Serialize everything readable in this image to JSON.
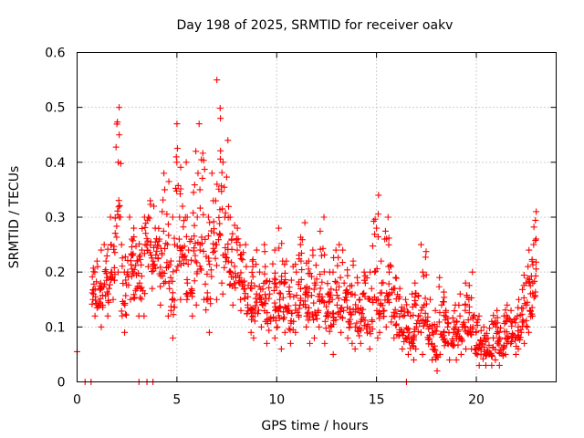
{
  "chart_data": {
    "type": "scatter",
    "title": "Day 198 of 2025, SRMTID for receiver oakv",
    "xlabel": "GPS time / hours",
    "ylabel": "SRMTID / TECUs",
    "xlim": [
      0,
      24
    ],
    "ylim": [
      0,
      0.6
    ],
    "x_ticks": [
      0,
      5,
      10,
      15,
      20
    ],
    "x_tick_labels": [
      "0",
      "5",
      "10",
      "15",
      "20"
    ],
    "y_ticks": [
      0,
      0.1,
      0.2,
      0.3,
      0.4,
      0.5,
      0.6
    ],
    "y_tick_labels": [
      "0",
      "0.1",
      "0.2",
      "0.3",
      "0.4",
      "0.5",
      "0.6"
    ],
    "grid": true,
    "marker": "+",
    "series_color": "#ff0000",
    "series": [
      {
        "name": "SRMTID",
        "note": "thousands of points; binned summary: for each time bin, representative values spanning the visible vertical spread",
        "bins": [
          {
            "x": 0.0,
            "values": [
              0.055
            ]
          },
          {
            "x": 0.7,
            "values": [
              0.12,
              0.15,
              0.2,
              0.22
            ]
          },
          {
            "x": 1.0,
            "values": [
              0.1,
              0.14,
              0.18,
              0.21,
              0.24
            ]
          },
          {
            "x": 1.3,
            "values": [
              0.12,
              0.17,
              0.22,
              0.25
            ]
          },
          {
            "x": 1.6,
            "values": [
              0.15,
              0.2,
              0.25,
              0.3
            ]
          },
          {
            "x": 1.9,
            "values": [
              0.2,
              0.3,
              0.4,
              0.45,
              0.5
            ]
          },
          {
            "x": 2.2,
            "values": [
              0.09,
              0.14,
              0.2,
              0.25
            ]
          },
          {
            "x": 2.5,
            "values": [
              0.15,
              0.2,
              0.26,
              0.3
            ]
          },
          {
            "x": 2.8,
            "values": [
              0.12,
              0.17,
              0.22,
              0.28
            ]
          },
          {
            "x": 3.1,
            "values": [
              0.12,
              0.18,
              0.24,
              0.3
            ]
          },
          {
            "x": 3.4,
            "values": [
              0.21,
              0.25,
              0.3,
              0.33
            ]
          },
          {
            "x": 3.7,
            "values": [
              0.17,
              0.22,
              0.28,
              0.32
            ]
          },
          {
            "x": 4.0,
            "values": [
              0.14,
              0.2,
              0.26,
              0.31
            ]
          },
          {
            "x": 4.3,
            "values": [
              0.12,
              0.18,
              0.25,
              0.35,
              0.38
            ]
          },
          {
            "x": 4.6,
            "values": [
              0.08,
              0.13,
              0.19,
              0.25,
              0.3
            ]
          },
          {
            "x": 4.9,
            "values": [
              0.15,
              0.22,
              0.3,
              0.4,
              0.47
            ]
          },
          {
            "x": 5.2,
            "values": [
              0.16,
              0.23,
              0.3,
              0.4
            ]
          },
          {
            "x": 5.5,
            "values": [
              0.12,
              0.18,
              0.24,
              0.3
            ]
          },
          {
            "x": 5.8,
            "values": [
              0.14,
              0.22,
              0.3,
              0.38,
              0.42
            ]
          },
          {
            "x": 6.1,
            "values": [
              0.15,
              0.25,
              0.35,
              0.47
            ]
          },
          {
            "x": 6.4,
            "values": [
              0.09,
              0.15,
              0.22,
              0.3
            ]
          },
          {
            "x": 6.7,
            "values": [
              0.15,
              0.25,
              0.33,
              0.38
            ]
          },
          {
            "x": 7.0,
            "values": [
              0.18,
              0.27,
              0.36,
              0.48,
              0.55
            ]
          },
          {
            "x": 7.3,
            "values": [
              0.16,
              0.22,
              0.3,
              0.4,
              0.44
            ]
          },
          {
            "x": 7.6,
            "values": [
              0.14,
              0.2,
              0.26,
              0.3
            ]
          },
          {
            "x": 7.9,
            "values": [
              0.15,
              0.19,
              0.24,
              0.28
            ]
          },
          {
            "x": 8.2,
            "values": [
              0.13,
              0.17,
              0.21,
              0.25
            ]
          },
          {
            "x": 8.5,
            "values": [
              0.09,
              0.13,
              0.17,
              0.22
            ]
          },
          {
            "x": 8.8,
            "values": [
              0.08,
              0.12,
              0.16,
              0.21,
              0.24
            ]
          },
          {
            "x": 9.1,
            "values": [
              0.1,
              0.15,
              0.2,
              0.25
            ]
          },
          {
            "x": 9.4,
            "values": [
              0.07,
              0.11,
              0.16,
              0.21
            ]
          },
          {
            "x": 9.7,
            "values": [
              0.08,
              0.13,
              0.18,
              0.24
            ]
          },
          {
            "x": 10.0,
            "values": [
              0.06,
              0.1,
              0.15,
              0.22,
              0.28
            ]
          },
          {
            "x": 10.3,
            "values": [
              0.09,
              0.13,
              0.18,
              0.22
            ]
          },
          {
            "x": 10.6,
            "values": [
              0.07,
              0.11,
              0.16,
              0.21
            ]
          },
          {
            "x": 10.9,
            "values": [
              0.09,
              0.14,
              0.2,
              0.25
            ]
          },
          {
            "x": 11.2,
            "values": [
              0.1,
              0.16,
              0.22,
              0.29
            ]
          },
          {
            "x": 11.5,
            "values": [
              0.07,
              0.12,
              0.17,
              0.22
            ]
          },
          {
            "x": 11.8,
            "values": [
              0.08,
              0.13,
              0.18,
              0.24
            ]
          },
          {
            "x": 12.1,
            "values": [
              0.1,
              0.16,
              0.23,
              0.3
            ]
          },
          {
            "x": 12.4,
            "values": [
              0.07,
              0.11,
              0.16,
              0.2
            ]
          },
          {
            "x": 12.7,
            "values": [
              0.05,
              0.1,
              0.15,
              0.2,
              0.24
            ]
          },
          {
            "x": 13.0,
            "values": [
              0.09,
              0.14,
              0.19,
              0.25
            ]
          },
          {
            "x": 13.3,
            "values": [
              0.08,
              0.13,
              0.18,
              0.24
            ]
          },
          {
            "x": 13.6,
            "values": [
              0.07,
              0.11,
              0.16,
              0.22
            ]
          },
          {
            "x": 13.9,
            "values": [
              0.06,
              0.1,
              0.15,
              0.19
            ]
          },
          {
            "x": 14.2,
            "values": [
              0.07,
              0.11,
              0.16,
              0.2
            ]
          },
          {
            "x": 14.5,
            "values": [
              0.06,
              0.1,
              0.15,
              0.2
            ]
          },
          {
            "x": 14.8,
            "values": [
              0.08,
              0.13,
              0.2,
              0.28,
              0.34
            ]
          },
          {
            "x": 15.1,
            "values": [
              0.09,
              0.13,
              0.18,
              0.22
            ]
          },
          {
            "x": 15.4,
            "values": [
              0.1,
              0.15,
              0.2,
              0.26,
              0.3
            ]
          },
          {
            "x": 15.7,
            "values": [
              0.08,
              0.12,
              0.17,
              0.21
            ]
          },
          {
            "x": 16.0,
            "values": [
              0.06,
              0.09,
              0.13,
              0.17
            ]
          },
          {
            "x": 16.3,
            "values": [
              0.05,
              0.08,
              0.12,
              0.15
            ]
          },
          {
            "x": 16.6,
            "values": [
              0.04,
              0.08,
              0.12,
              0.16
            ]
          },
          {
            "x": 16.9,
            "values": [
              0.06,
              0.1,
              0.14,
              0.18
            ]
          },
          {
            "x": 17.2,
            "values": [
              0.05,
              0.09,
              0.14,
              0.2,
              0.25
            ]
          },
          {
            "x": 17.5,
            "values": [
              0.04,
              0.07,
              0.11,
              0.15
            ]
          },
          {
            "x": 17.8,
            "values": [
              0.02,
              0.05,
              0.09,
              0.13
            ]
          },
          {
            "x": 18.1,
            "values": [
              0.05,
              0.09,
              0.14,
              0.19
            ]
          },
          {
            "x": 18.4,
            "values": [
              0.04,
              0.07,
              0.1,
              0.13
            ]
          },
          {
            "x": 18.7,
            "values": [
              0.04,
              0.07,
              0.1,
              0.14
            ]
          },
          {
            "x": 19.0,
            "values": [
              0.05,
              0.08,
              0.12,
              0.16
            ]
          },
          {
            "x": 19.3,
            "values": [
              0.06,
              0.1,
              0.14,
              0.18
            ]
          },
          {
            "x": 19.6,
            "values": [
              0.06,
              0.1,
              0.15,
              0.2
            ]
          },
          {
            "x": 19.9,
            "values": [
              0.03,
              0.06,
              0.09,
              0.12
            ]
          },
          {
            "x": 20.2,
            "values": [
              0.03,
              0.05,
              0.08,
              0.1
            ]
          },
          {
            "x": 20.5,
            "values": [
              0.03,
              0.05,
              0.08,
              0.11
            ]
          },
          {
            "x": 20.8,
            "values": [
              0.04,
              0.07,
              0.1,
              0.13
            ]
          },
          {
            "x": 21.1,
            "values": [
              0.03,
              0.06,
              0.09,
              0.12
            ]
          },
          {
            "x": 21.4,
            "values": [
              0.05,
              0.08,
              0.11,
              0.14
            ]
          },
          {
            "x": 21.7,
            "values": [
              0.05,
              0.08,
              0.11,
              0.13
            ]
          },
          {
            "x": 22.0,
            "values": [
              0.06,
              0.09,
              0.12,
              0.15
            ]
          },
          {
            "x": 22.3,
            "values": [
              0.07,
              0.1,
              0.14,
              0.18,
              0.21
            ]
          },
          {
            "x": 22.6,
            "values": [
              0.09,
              0.13,
              0.18,
              0.24
            ]
          },
          {
            "x": 22.8,
            "values": [
              0.12,
              0.18,
              0.25,
              0.31
            ]
          }
        ],
        "zero_points_x": [
          0.4,
          0.7,
          3.1,
          3.5,
          3.8,
          16.5
        ]
      }
    ]
  }
}
